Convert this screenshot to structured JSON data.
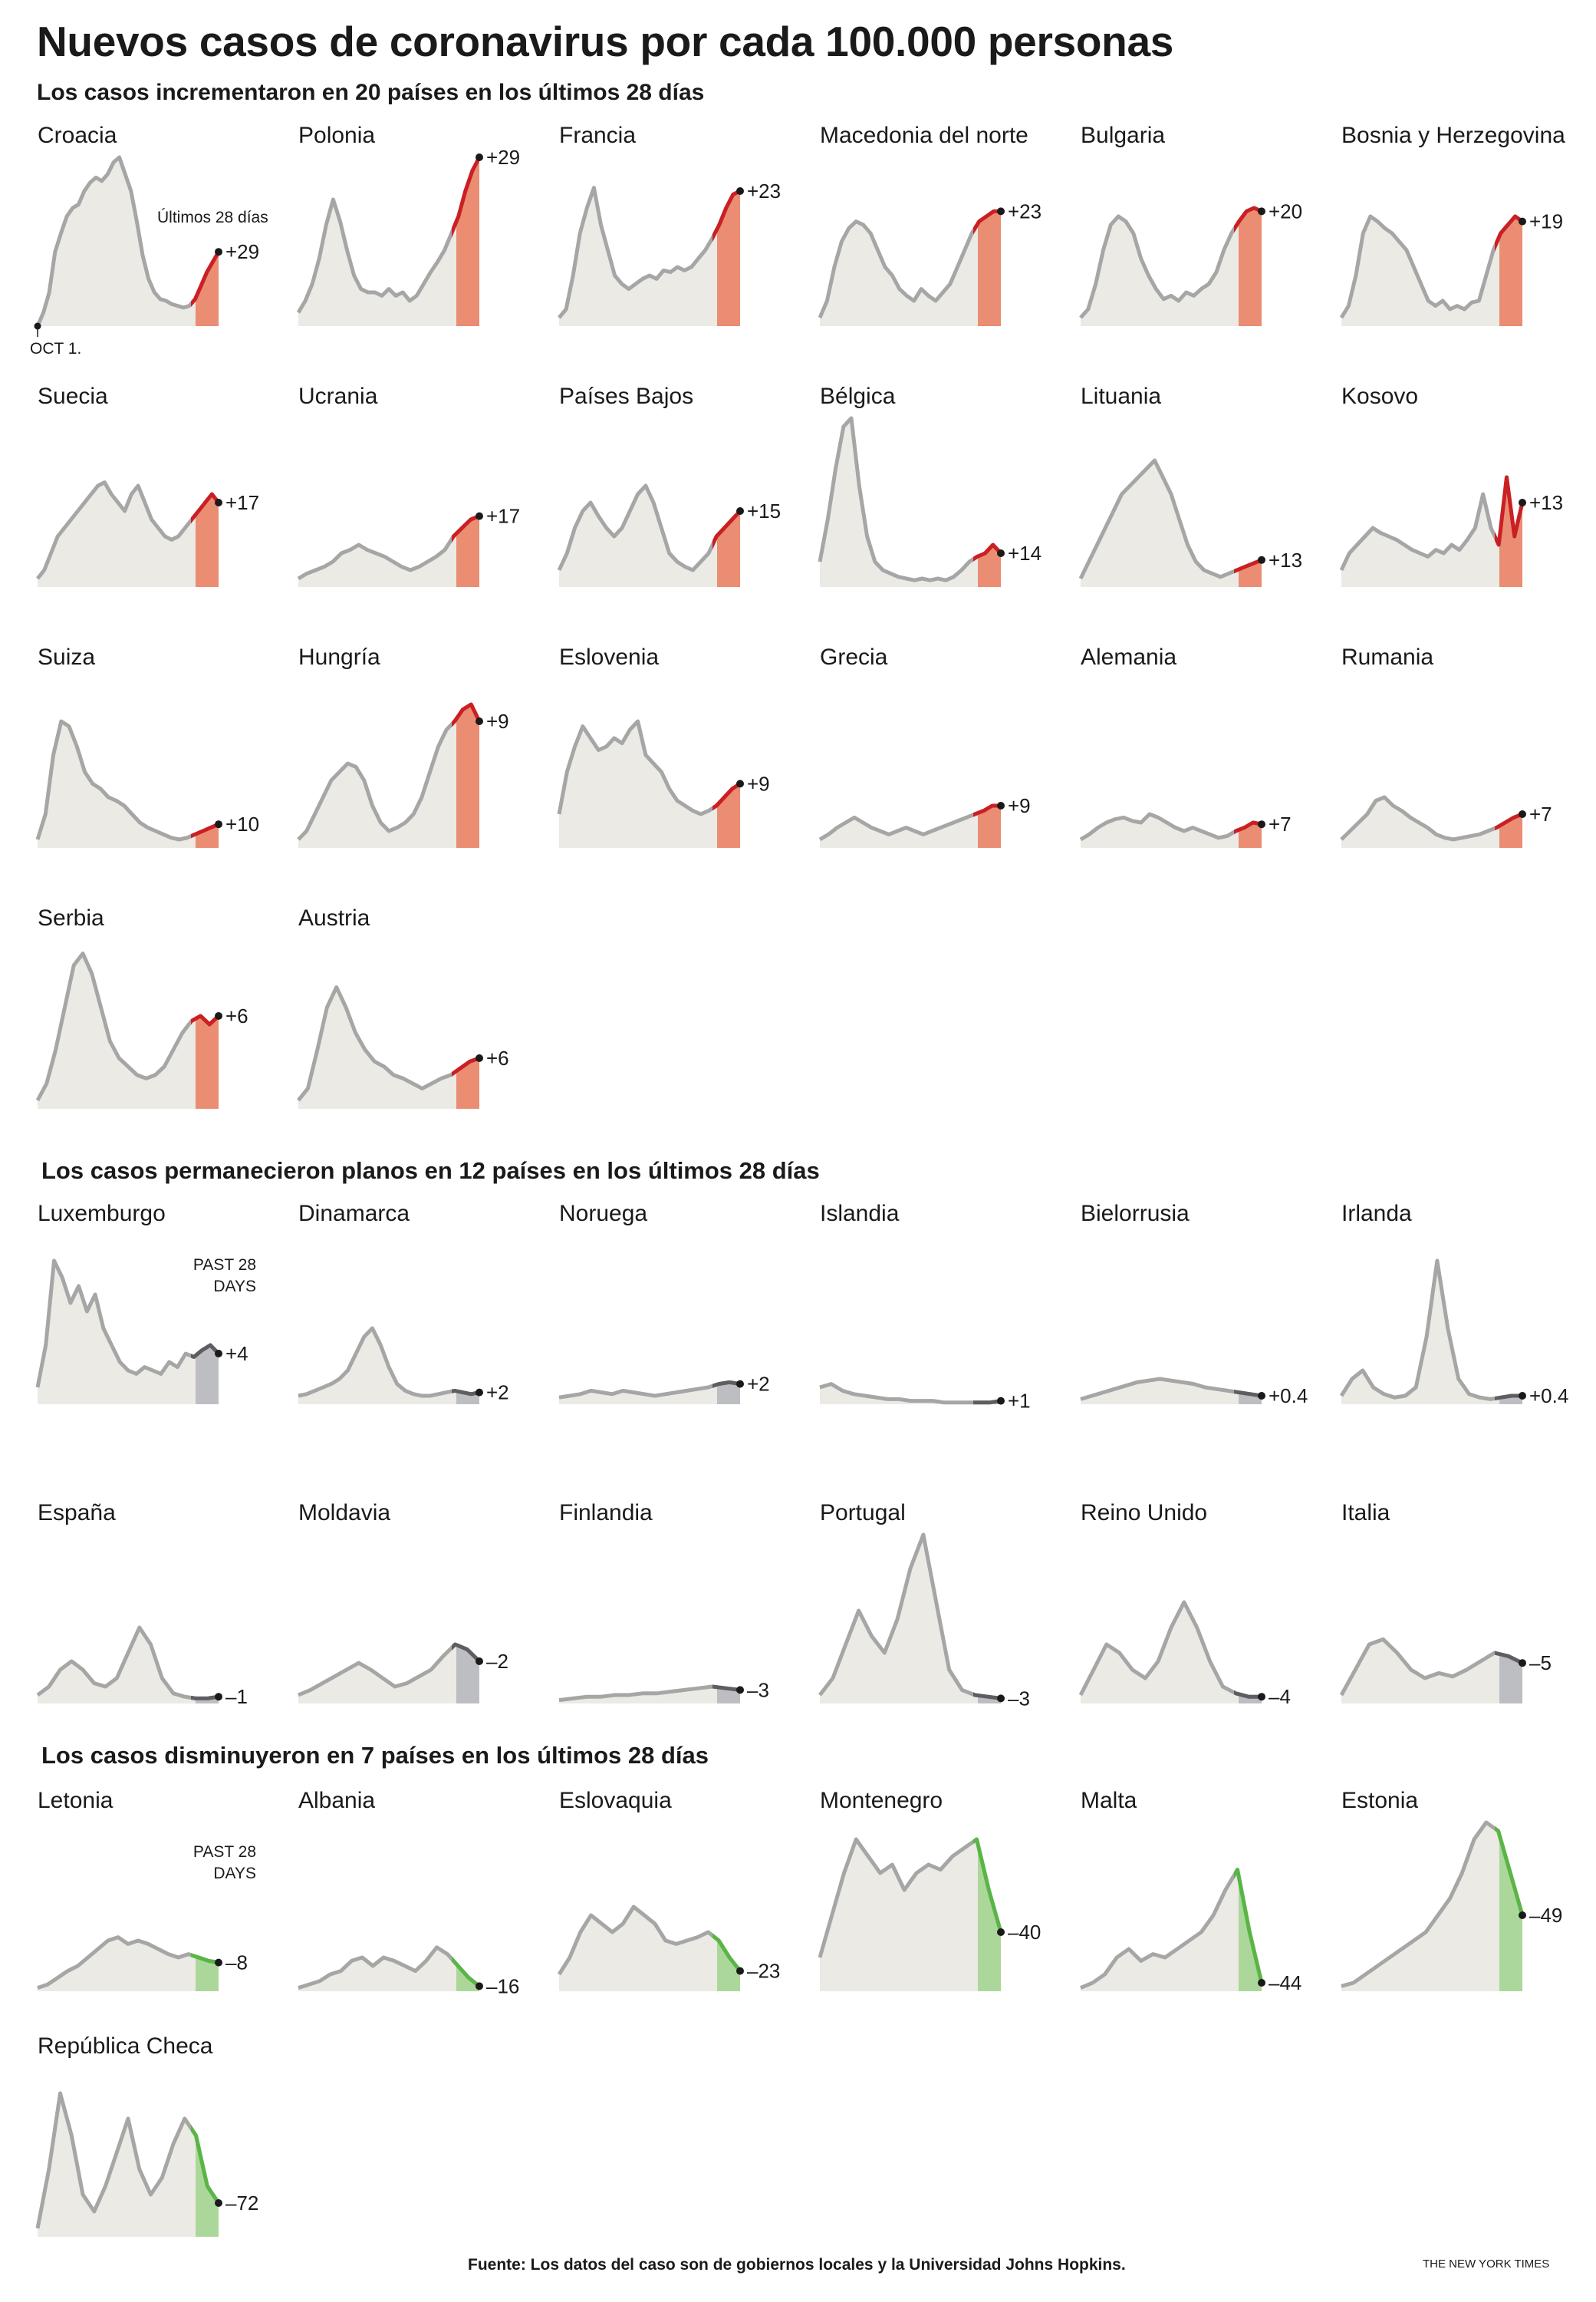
{
  "title": "Nuevos casos de coronavirus por cada 100.000 personas",
  "subtitle": "Los casos incrementaron en 20 países en los últimos 28 días",
  "sections": {
    "increased": {
      "title": ""
    },
    "flat": {
      "title": "Los casos permanecieron planos en 12 países en los últimos 28 días"
    },
    "decreased": {
      "title": "Los casos disminuyeron en 7 países en los últimos 28 días"
    }
  },
  "annotations": {
    "past_label_es": "Últimos 28 días",
    "past_label_en_line1": "PAST 28",
    "past_label_en_line2": "DAYS",
    "start_label": "OCT 1."
  },
  "colors": {
    "history_fill": "#ebeae4",
    "history_line": "#a6a6a6",
    "increase_fill": "#ea8d73",
    "increase_line": "#cc1f23",
    "flat_fill": "#bdbec2",
    "flat_line": "#5e5e62",
    "decrease_fill": "#acd79a",
    "decrease_line": "#59b645"
  },
  "source": "Fuente: Los datos del caso son de gobiernos locales y la Universidad Johns Hopkins.",
  "credit": "THE NEW YORK TIMES",
  "chart_data": {
    "type": "area",
    "small_multiples": true,
    "x_start_label": "OCT 1.",
    "groups": [
      {
        "trend": "increase",
        "countries": [
          {
            "name": "Croacia",
            "change": "+29",
            "series": [
              0,
              0.08,
              0.2,
              0.44,
              0.55,
              0.65,
              0.7,
              0.72,
              0.8,
              0.85,
              0.88,
              0.86,
              0.9,
              0.97,
              1.0,
              0.9,
              0.8,
              0.62,
              0.42,
              0.28,
              0.2,
              0.16,
              0.15,
              0.13,
              0.12,
              0.11,
              0.12,
              0.16,
              0.24,
              0.32,
              0.38,
              0.44
            ]
          },
          {
            "name": "Polonia",
            "change": "+29",
            "series": [
              0.08,
              0.15,
              0.25,
              0.4,
              0.6,
              0.75,
              0.62,
              0.45,
              0.3,
              0.22,
              0.2,
              0.2,
              0.18,
              0.22,
              0.18,
              0.2,
              0.15,
              0.18,
              0.25,
              0.32,
              0.38,
              0.45,
              0.55,
              0.65,
              0.8,
              0.92,
              1.0
            ]
          },
          {
            "name": "Francia",
            "change": "+23",
            "series": [
              0.05,
              0.1,
              0.3,
              0.55,
              0.7,
              0.82,
              0.6,
              0.45,
              0.3,
              0.25,
              0.22,
              0.25,
              0.28,
              0.3,
              0.28,
              0.33,
              0.32,
              0.35,
              0.33,
              0.35,
              0.4,
              0.45,
              0.52,
              0.6,
              0.7,
              0.78,
              0.8
            ]
          },
          {
            "name": "Macedonia del norte",
            "change": "+23",
            "series": [
              0.05,
              0.15,
              0.35,
              0.5,
              0.58,
              0.62,
              0.6,
              0.55,
              0.45,
              0.35,
              0.3,
              0.22,
              0.18,
              0.15,
              0.22,
              0.18,
              0.15,
              0.2,
              0.25,
              0.35,
              0.45,
              0.55,
              0.62,
              0.65,
              0.68,
              0.68
            ]
          },
          {
            "name": "Bulgaria",
            "change": "+20",
            "series": [
              0.05,
              0.1,
              0.25,
              0.45,
              0.6,
              0.65,
              0.62,
              0.55,
              0.4,
              0.3,
              0.22,
              0.16,
              0.18,
              0.15,
              0.2,
              0.18,
              0.22,
              0.25,
              0.32,
              0.45,
              0.55,
              0.62,
              0.68,
              0.7,
              0.68
            ]
          },
          {
            "name": "Bosnia y Herzegovina",
            "change": "+19",
            "series": [
              0.05,
              0.12,
              0.3,
              0.55,
              0.65,
              0.62,
              0.58,
              0.55,
              0.5,
              0.45,
              0.35,
              0.25,
              0.15,
              0.12,
              0.15,
              0.1,
              0.12,
              0.1,
              0.14,
              0.15,
              0.3,
              0.45,
              0.55,
              0.6,
              0.65,
              0.62
            ]
          }
        ]
      }
    ]
  }
}
